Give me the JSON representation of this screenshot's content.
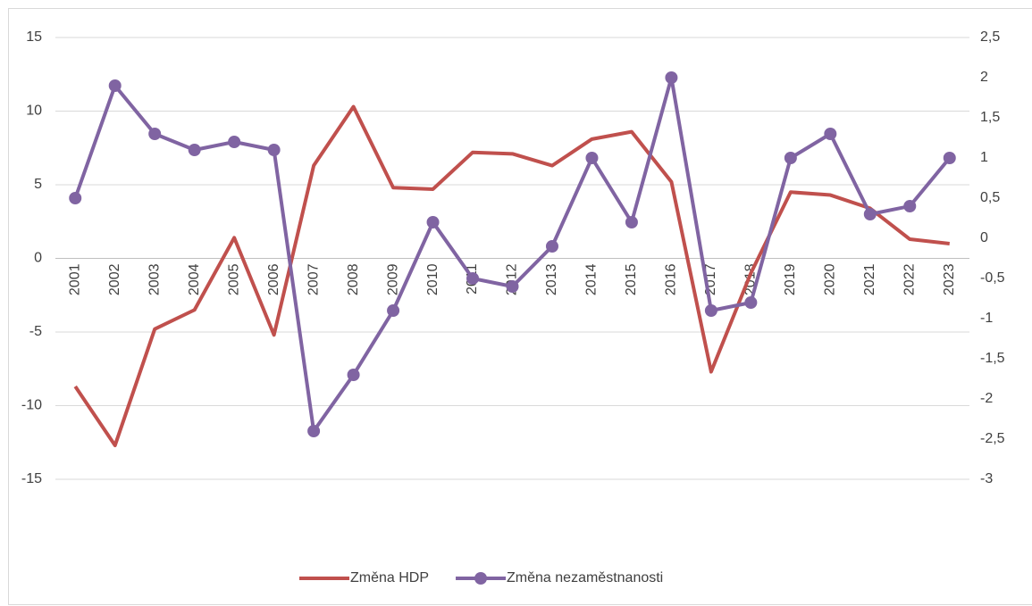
{
  "chart_data": {
    "type": "line",
    "categories": [
      "2001",
      "2002",
      "2003",
      "2004",
      "2005",
      "2006",
      "2007",
      "2008",
      "2009",
      "2010",
      "2011",
      "2012",
      "2013",
      "2014",
      "2015",
      "2016",
      "2017",
      "2018",
      "2019",
      "2020",
      "2021",
      "2022",
      "2023"
    ],
    "series": [
      {
        "name": "Změna HDP",
        "color": "#c0504d",
        "marker": false,
        "values": [
          -8.7,
          -12.7,
          -4.8,
          -3.5,
          1.4,
          -5.2,
          6.3,
          10.3,
          4.8,
          4.7,
          7.2,
          7.1,
          6.3,
          8.1,
          8.6,
          5.2,
          -7.7,
          -1.0,
          4.5,
          4.3,
          3.4,
          1.3,
          1.0
        ]
      },
      {
        "name": "Změna nezaměstnanosti",
        "color": "#8064a2",
        "marker": true,
        "axis": "y2",
        "values": [
          0.5,
          1.9,
          1.3,
          1.1,
          1.2,
          1.1,
          -2.4,
          -1.7,
          -0.9,
          0.2,
          -0.5,
          -0.6,
          -0.1,
          1.0,
          0.2,
          2.0,
          -0.9,
          -0.8,
          1.0,
          1.3,
          0.3,
          0.4,
          1.0
        ]
      }
    ],
    "ylim": [
      -15,
      15
    ],
    "yticks": [
      -15,
      -10,
      -5,
      0,
      5,
      10,
      15
    ],
    "y2lim": [
      -3,
      2.5
    ],
    "y2ticks": [
      -3,
      {
        "value": -2.5,
        "label": "-2,5"
      },
      -2,
      {
        "value": -1.5,
        "label": "-1,5"
      },
      -1,
      {
        "value": -0.5,
        "label": "-0,5"
      },
      0,
      {
        "value": 0.5,
        "label": "0,5"
      },
      1,
      {
        "value": 1.5,
        "label": "1,5"
      },
      2,
      {
        "value": 2.5,
        "label": "2,5"
      }
    ],
    "grid": true,
    "legend": "bottom"
  }
}
